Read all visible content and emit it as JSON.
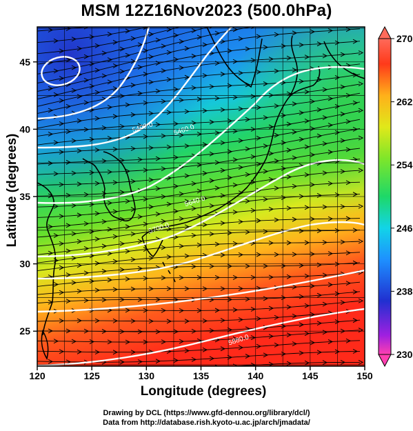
{
  "title": "MSM 12Z16Nov2023 (500.0hPa)",
  "xlabel": "Longitude (degrees)",
  "ylabel": "Latitude  (degrees)",
  "credits": [
    "Drawing by DCL (https://www.gfd-dennou.org/library/dcl/)",
    "Data from http://database.rish.kyoto-u.ac.jp/arch/jmadata/"
  ],
  "map": {
    "lon_range": [
      120,
      150
    ],
    "lat_range": [
      22.4,
      47.6
    ],
    "lon_ticks": [
      120,
      125,
      130,
      135,
      140,
      145,
      150
    ],
    "lat_ticks": [
      25,
      30,
      35,
      40,
      45
    ],
    "grid": true,
    "field": "temperature (K) shaded, geopotential height contours, wind streamlines"
  },
  "colorbar": {
    "range": [
      230,
      270
    ],
    "ticks": [
      270,
      262,
      254,
      246,
      238,
      230
    ],
    "colors": [
      "#ff1aa8",
      "#8a2be2",
      "#1e3cd8",
      "#1e90ff",
      "#12d4e8",
      "#22d65a",
      "#8ee62a",
      "#e8e81a",
      "#ff9a1a",
      "#ff3a1a",
      "#ff6a5a"
    ]
  },
  "contours": [
    {
      "label": "5400.0",
      "label_lon": 129.7,
      "label_lat": 40.0
    },
    {
      "label": "5460.0",
      "label_lon": 133.5,
      "label_lat": 39.8
    },
    {
      "label": "5640.0",
      "label_lon": 134.5,
      "label_lat": 34.5
    },
    {
      "label": "5700.0",
      "label_lon": 131.2,
      "label_lat": 32.5
    },
    {
      "label": "5880.0",
      "label_lon": 138.5,
      "label_lat": 24.2
    }
  ]
}
